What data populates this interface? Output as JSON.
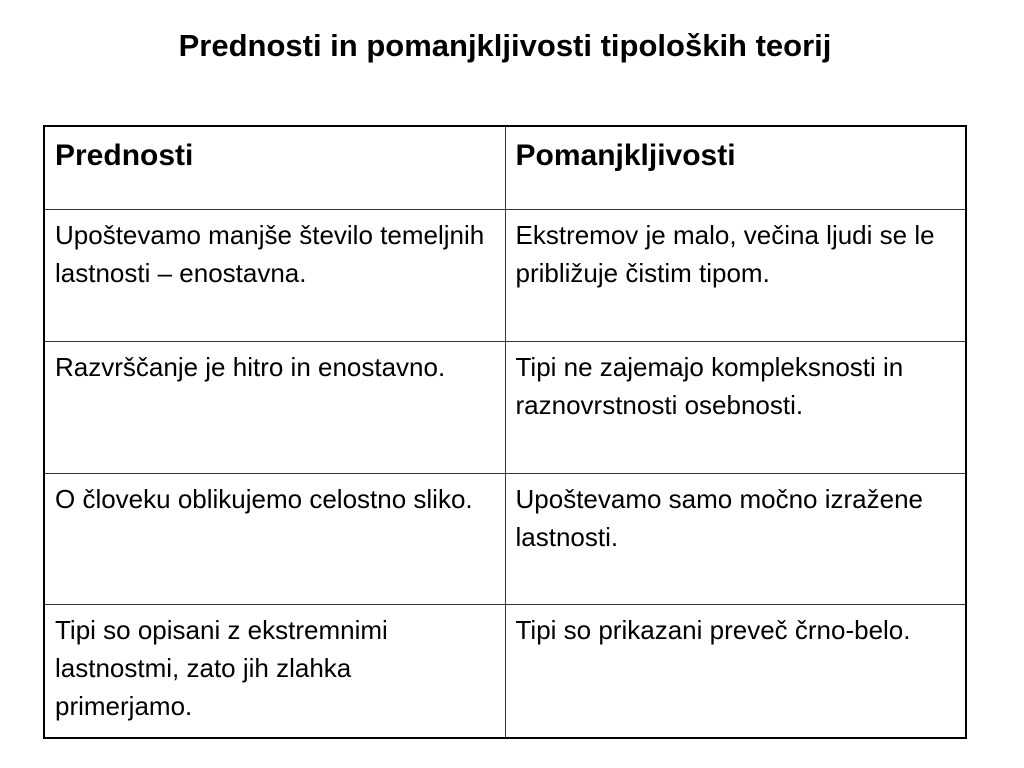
{
  "title": "Prednosti in pomanjkljivosti tipoloških teorij",
  "table": {
    "headers": [
      "Prednosti",
      "Pomanjkljivosti"
    ],
    "rows": [
      [
        "Upoštevamo manjše število temeljnih lastnosti – enostavna.",
        "Ekstremov je malo, večina ljudi se le približuje čistim tipom."
      ],
      [
        "Razvrščanje je hitro in enostavno.",
        "Tipi ne zajemajo kompleksnosti in raznovrstnosti osebnosti."
      ],
      [
        "O človeku oblikujemo celostno sliko.",
        "Upoštevamo samo močno izražene lastnosti."
      ],
      [
        "Tipi so opisani z ekstremnimi lastnostmi, zato jih zlahka primerjamo.",
        "Tipi so prikazani preveč črno-belo."
      ]
    ]
  }
}
